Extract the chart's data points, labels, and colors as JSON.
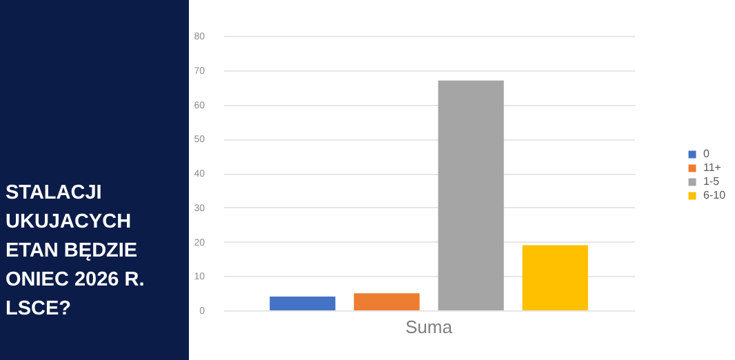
{
  "chart_data": {
    "type": "bar",
    "categories": [
      "Suma"
    ],
    "series": [
      {
        "name": "0",
        "color": "#4472c4",
        "values": [
          4
        ]
      },
      {
        "name": "11+",
        "color": "#ed7d31",
        "values": [
          5
        ]
      },
      {
        "name": "1-5",
        "color": "#a5a5a5",
        "values": [
          67
        ]
      },
      {
        "name": "6-10",
        "color": "#ffc000",
        "values": [
          19
        ]
      }
    ],
    "ylim": [
      0,
      80
    ],
    "yticks": [
      0,
      10,
      20,
      30,
      40,
      50,
      60,
      70,
      80
    ],
    "grid": "y",
    "legend": "right",
    "annotations": [
      "STALACJI",
      "UKUJACYCH",
      "ETAN BĘDZIE",
      "ONIEC 2026 R.",
      "LSCE?"
    ]
  }
}
